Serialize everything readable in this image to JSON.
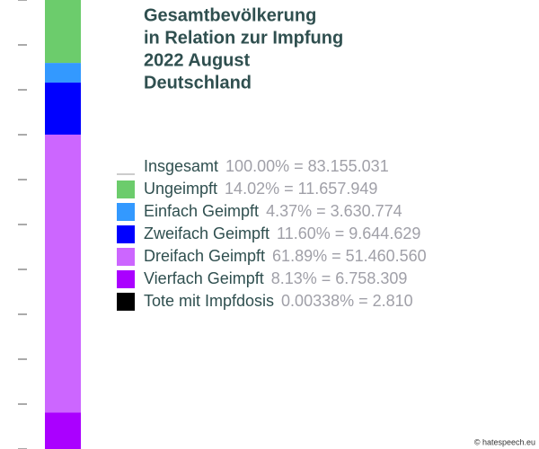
{
  "chart_data": {
    "type": "stacked_bar",
    "title": [
      "Gesamtbevölkerung",
      "in Relation zur Impfung",
      "2022 August",
      "Deutschland"
    ],
    "total": {
      "name": "Insgesamt",
      "value": 100,
      "value_label": "100.00% = 83.155.031"
    },
    "series": [
      {
        "name": "Ungeimpft",
        "color": "#6ccc6c",
        "values": [
          14.02
        ],
        "value_labels": [
          "14.02% = 11.657.949"
        ]
      },
      {
        "name": "Einfach Geimpft",
        "color": "#3399ff",
        "values": [
          4.37
        ],
        "value_labels": [
          "4.37% = 3.630.774"
        ]
      },
      {
        "name": "Zweifach Geimpft",
        "color": "#0000ff",
        "values": [
          11.6
        ],
        "value_labels": [
          "11.60% = 9.644.629"
        ]
      },
      {
        "name": "Dreifach Geimpft",
        "color": "#cc66ff",
        "values": [
          61.89
        ],
        "value_labels": [
          "61.89% = 51.460.560"
        ]
      },
      {
        "name": "Vierfach Geimpft",
        "color": "#aa00ff",
        "values": [
          8.13
        ],
        "value_labels": [
          "8.13% = 6.758.309"
        ]
      },
      {
        "name": "Tote mit Impfdosis",
        "color": "#000000",
        "values": [
          0.00338
        ],
        "value_labels": [
          "0.00338% = 2.810"
        ]
      }
    ],
    "ylim": [
      0,
      100
    ],
    "yticks": [
      0,
      10,
      20,
      30,
      40,
      50,
      60,
      70,
      80,
      90,
      100
    ],
    "y_inverted": true,
    "credit": "© hatespeech.eu"
  }
}
